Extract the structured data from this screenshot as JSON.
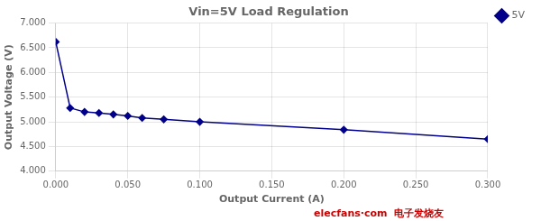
{
  "chart_data": {
    "type": "line",
    "title": "Vin=5V Load Regulation",
    "x_label": "Output Current (A)",
    "y_label": "Output Voltage (V)",
    "xlim": [
      0,
      0.3
    ],
    "ylim": [
      4.0,
      7.0
    ],
    "xticks": [
      {
        "value": 0.0,
        "label": "0.000"
      },
      {
        "value": 0.05,
        "label": "0.050"
      },
      {
        "value": 0.1,
        "label": "0.100"
      },
      {
        "value": 0.15,
        "label": "0.150"
      },
      {
        "value": 0.2,
        "label": "0.200"
      },
      {
        "value": 0.25,
        "label": "0.250"
      },
      {
        "value": 0.3,
        "label": "0.300"
      }
    ],
    "yticks": [
      {
        "value": 4.0,
        "label": "4.000"
      },
      {
        "value": 4.5,
        "label": "4.500"
      },
      {
        "value": 5.0,
        "label": "5.000"
      },
      {
        "value": 5.5,
        "label": "5.500"
      },
      {
        "value": 6.0,
        "label": "6.000"
      },
      {
        "value": 6.5,
        "label": "6.500"
      },
      {
        "value": 7.0,
        "label": "7.000"
      }
    ],
    "x": [
      0.0,
      0.01,
      0.02,
      0.03,
      0.04,
      0.05,
      0.06,
      0.075,
      0.1,
      0.2,
      0.3
    ],
    "series": [
      {
        "name": "5V",
        "color": "#00008B",
        "marker": "diamond",
        "values": [
          6.62,
          5.28,
          5.2,
          5.18,
          5.15,
          5.12,
          5.08,
          5.05,
          5.0,
          4.84,
          4.65
        ]
      }
    ],
    "grid": true,
    "legend": "right",
    "annotations": [
      {
        "text": "elecfans·com  电子发烧友",
        "color": "#cc0000"
      }
    ]
  }
}
